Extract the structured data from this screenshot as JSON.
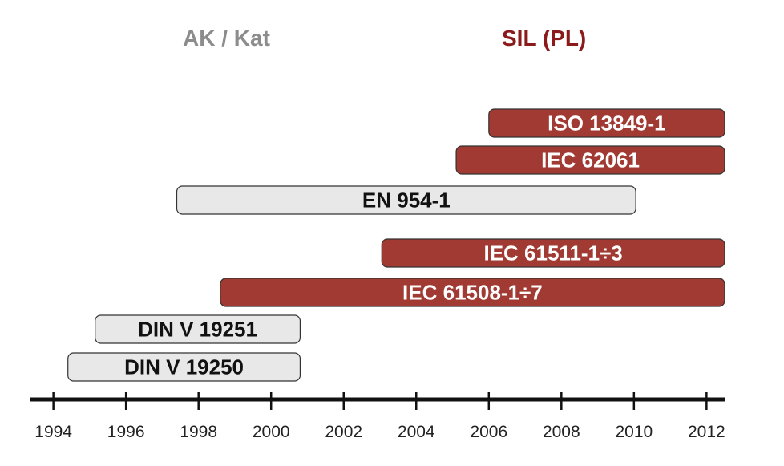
{
  "headers": {
    "legacy": "AK / Kat",
    "modern": "SIL (PL)"
  },
  "colors": {
    "legacy_fill": "#e8e8e8",
    "legacy_text": "#111111",
    "modern_fill": "#a03a33",
    "modern_text": "#ffffff",
    "outline": "#333333",
    "axis": "#111111",
    "legacy_header": "#8c8c8c",
    "modern_header": "#8b1a1a"
  },
  "axis": {
    "min": 1993.5,
    "max": 2012.5,
    "tick_labels": [
      "1994",
      "1996",
      "1998",
      "2000",
      "2002",
      "2004",
      "2006",
      "2008",
      "2010",
      "2012"
    ]
  },
  "standards": [
    {
      "label": "ISO 13849-1",
      "start": 2006.0,
      "end": 2012.5,
      "group": "modern"
    },
    {
      "label": "IEC 62061",
      "start": 2005.1,
      "end": 2012.5,
      "group": "modern"
    },
    {
      "label": "EN 954-1",
      "start": 1997.4,
      "end": 2010.05,
      "group": "legacy"
    },
    {
      "label": "IEC 61511-1÷3",
      "start": 2003.05,
      "end": 2012.5,
      "group": "modern"
    },
    {
      "label": "IEC 61508-1÷7",
      "start": 1998.6,
      "end": 2012.5,
      "group": "modern"
    },
    {
      "label": "DIN V 19251",
      "start": 1995.15,
      "end": 2000.8,
      "group": "legacy"
    },
    {
      "label": "DIN V 19250",
      "start": 1994.4,
      "end": 2000.8,
      "group": "legacy"
    }
  ]
}
